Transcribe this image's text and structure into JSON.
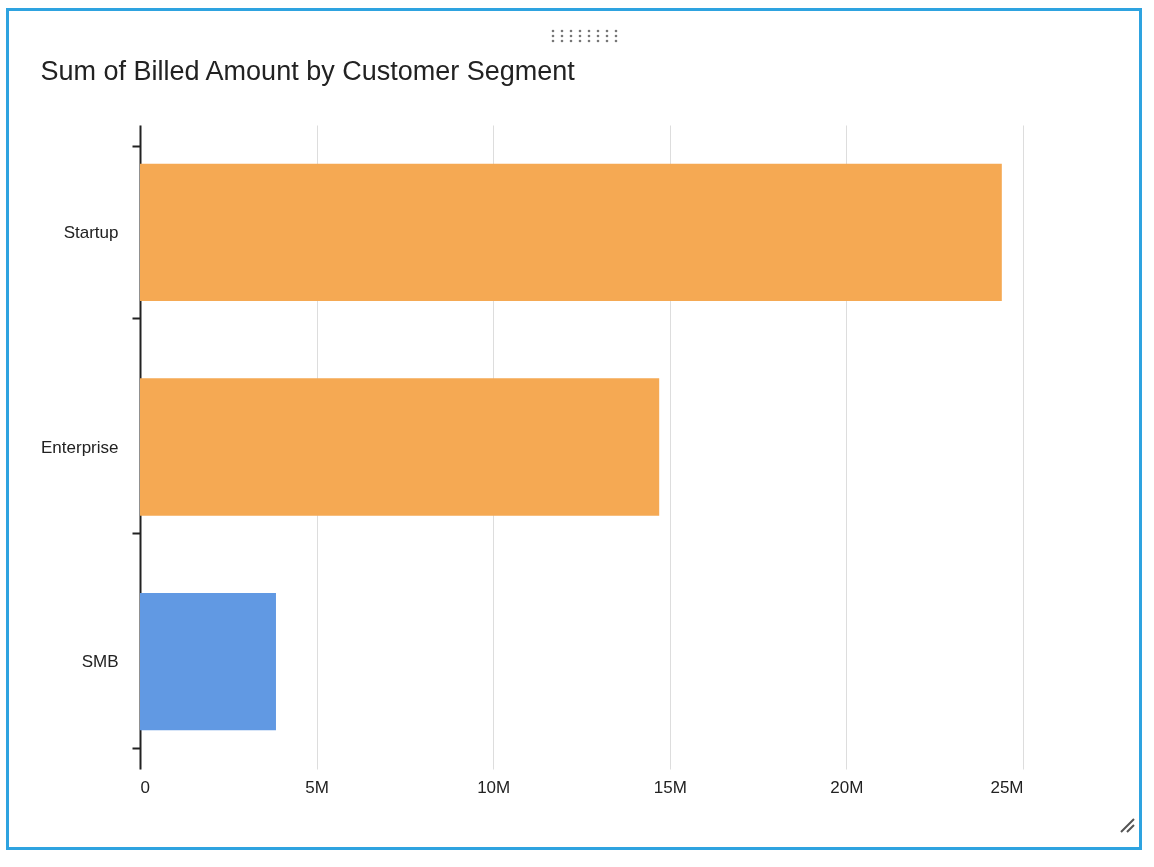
{
  "chart_data": {
    "type": "bar",
    "orientation": "horizontal",
    "title": "Sum of Billed Amount by Customer Segment",
    "categories": [
      "Startup",
      "Enterprise",
      "SMB"
    ],
    "values": [
      24400000,
      14700000,
      3850000
    ],
    "colors": [
      "#f5a953",
      "#f5a953",
      "#6199e3"
    ],
    "xlim": [
      0,
      25000000
    ],
    "xticks": [
      0,
      {
        "value": 5000000,
        "label": "5M"
      },
      {
        "value": 10000000,
        "label": "10M"
      },
      {
        "value": 15000000,
        "label": "15M"
      },
      {
        "value": 20000000,
        "label": "20M"
      },
      {
        "value": 25000000,
        "label": "25M"
      }
    ],
    "grid": "x"
  }
}
